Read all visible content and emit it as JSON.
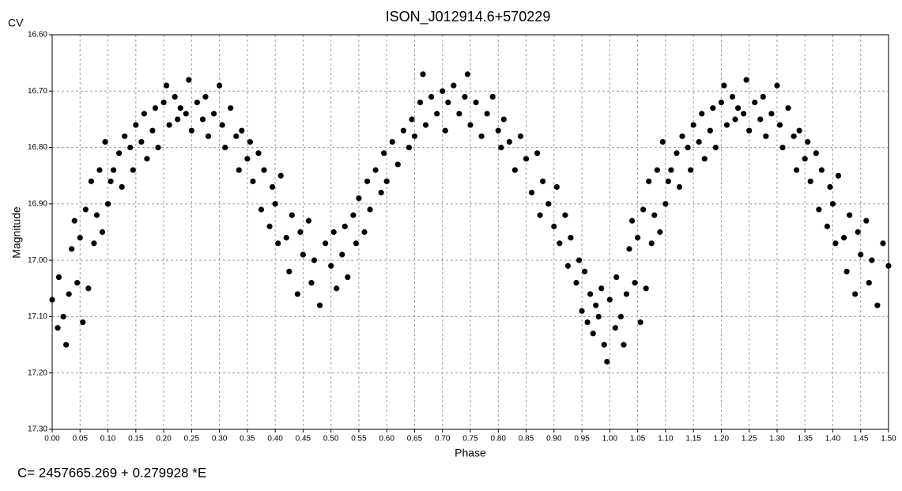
{
  "chart_data": {
    "type": "scatter",
    "title": "ISON_J012914.6+570229",
    "corner_label": "CV",
    "x_label": "Phase",
    "y_label": "Magnitude",
    "footnote": "C= 2457665.269 + 0.279928 *E",
    "color": "#000000",
    "grid": true,
    "y_inverted": true,
    "xlim": [
      0,
      1.5
    ],
    "ylim": [
      16.6,
      17.3
    ],
    "xticks": [
      {
        "value": 0,
        "label": "0.00"
      },
      {
        "value": 0.05,
        "label": "0.05"
      },
      {
        "value": 0.1,
        "label": "0.10"
      },
      {
        "value": 0.15,
        "label": "0.15"
      },
      {
        "value": 0.2,
        "label": "0.20"
      },
      {
        "value": 0.25,
        "label": "0.25"
      },
      {
        "value": 0.3,
        "label": "0.30"
      },
      {
        "value": 0.35,
        "label": "0.35"
      },
      {
        "value": 0.4,
        "label": "0.40"
      },
      {
        "value": 0.45,
        "label": "0.45"
      },
      {
        "value": 0.5,
        "label": "0.50"
      },
      {
        "value": 0.55,
        "label": "0.55"
      },
      {
        "value": 0.6,
        "label": "0.60"
      },
      {
        "value": 0.65,
        "label": "0.65"
      },
      {
        "value": 0.7,
        "label": "0.70"
      },
      {
        "value": 0.75,
        "label": "0.75"
      },
      {
        "value": 0.8,
        "label": "0.80"
      },
      {
        "value": 0.85,
        "label": "0.85"
      },
      {
        "value": 0.9,
        "label": "0.90"
      },
      {
        "value": 0.95,
        "label": "0.95"
      },
      {
        "value": 1,
        "label": "1.00"
      },
      {
        "value": 1.05,
        "label": "1.05"
      },
      {
        "value": 1.1,
        "label": "1.10"
      },
      {
        "value": 1.15,
        "label": "1.15"
      },
      {
        "value": 1.2,
        "label": "1.20"
      },
      {
        "value": 1.25,
        "label": "1.25"
      },
      {
        "value": 1.3,
        "label": "1.30"
      },
      {
        "value": 1.35,
        "label": "1.35"
      },
      {
        "value": 1.4,
        "label": "1.40"
      },
      {
        "value": 1.45,
        "label": "1.45"
      },
      {
        "value": 1.5,
        "label": "1.50"
      }
    ],
    "yticks": [
      {
        "value": 16.6,
        "label": "16.60"
      },
      {
        "value": 16.7,
        "label": "16.70"
      },
      {
        "value": 16.8,
        "label": "16.80"
      },
      {
        "value": 16.9,
        "label": "16.90"
      },
      {
        "value": 17.0,
        "label": "17.00"
      },
      {
        "value": 17.1,
        "label": "17.10"
      },
      {
        "value": 17.2,
        "label": "17.20"
      },
      {
        "value": 17.3,
        "label": "17.30"
      }
    ],
    "x": [
      0.0,
      0.01,
      0.012,
      0.02,
      0.025,
      0.03,
      0.035,
      0.04,
      0.045,
      0.05,
      0.055,
      0.06,
      0.065,
      0.07,
      0.075,
      0.08,
      0.085,
      0.09,
      0.095,
      0.1,
      0.105,
      0.11,
      0.12,
      0.125,
      0.13,
      0.14,
      0.145,
      0.15,
      0.16,
      0.165,
      0.17,
      0.18,
      0.185,
      0.19,
      0.2,
      0.205,
      0.21,
      0.22,
      0.225,
      0.23,
      0.24,
      0.245,
      0.25,
      0.26,
      0.27,
      0.275,
      0.28,
      0.29,
      0.3,
      0.305,
      0.31,
      0.32,
      0.33,
      0.335,
      0.34,
      0.35,
      0.355,
      0.36,
      0.37,
      0.375,
      0.38,
      0.39,
      0.395,
      0.4,
      0.405,
      0.41,
      0.42,
      0.425,
      0.43,
      0.44,
      0.445,
      0.45,
      0.46,
      0.465,
      0.47,
      0.48,
      0.49,
      0.5,
      0.505,
      0.51,
      0.52,
      0.525,
      0.53,
      0.54,
      0.545,
      0.55,
      0.56,
      0.565,
      0.57,
      0.58,
      0.59,
      0.595,
      0.6,
      0.61,
      0.62,
      0.63,
      0.64,
      0.645,
      0.65,
      0.66,
      0.665,
      0.67,
      0.68,
      0.69,
      0.7,
      0.705,
      0.71,
      0.72,
      0.73,
      0.74,
      0.745,
      0.75,
      0.76,
      0.77,
      0.78,
      0.79,
      0.8,
      0.805,
      0.81,
      0.82,
      0.83,
      0.84,
      0.85,
      0.86,
      0.87,
      0.875,
      0.88,
      0.89,
      0.9,
      0.905,
      0.91,
      0.92,
      0.925,
      0.93,
      0.94,
      0.945,
      0.95,
      0.955,
      0.96,
      0.965,
      0.97,
      0.975,
      0.98,
      0.985,
      0.99,
      0.995,
      1.0,
      1.01,
      1.012,
      1.02,
      1.025,
      1.03,
      1.035,
      1.04,
      1.045,
      1.05,
      1.055,
      1.06,
      1.065,
      1.07,
      1.075,
      1.08,
      1.085,
      1.09,
      1.095,
      1.1,
      1.105,
      1.11,
      1.12,
      1.125,
      1.13,
      1.14,
      1.145,
      1.15,
      1.16,
      1.165,
      1.17,
      1.18,
      1.185,
      1.19,
      1.2,
      1.205,
      1.21,
      1.22,
      1.225,
      1.23,
      1.24,
      1.245,
      1.25,
      1.26,
      1.27,
      1.275,
      1.28,
      1.29,
      1.3,
      1.305,
      1.31,
      1.32,
      1.33,
      1.335,
      1.34,
      1.35,
      1.355,
      1.36,
      1.37,
      1.375,
      1.38,
      1.39,
      1.395,
      1.4,
      1.405,
      1.41,
      1.42,
      1.425,
      1.43,
      1.44,
      1.445,
      1.45,
      1.46,
      1.465,
      1.47,
      1.48,
      1.49,
      1.5
    ],
    "values": [
      17.07,
      17.12,
      17.03,
      17.1,
      17.15,
      17.06,
      16.98,
      16.93,
      17.04,
      16.96,
      17.11,
      16.91,
      17.05,
      16.86,
      16.97,
      16.92,
      16.84,
      16.95,
      16.79,
      16.9,
      16.86,
      16.84,
      16.81,
      16.87,
      16.78,
      16.8,
      16.84,
      16.76,
      16.79,
      16.74,
      16.82,
      16.77,
      16.73,
      16.8,
      16.72,
      16.69,
      16.76,
      16.71,
      16.75,
      16.73,
      16.74,
      16.68,
      16.77,
      16.72,
      16.75,
      16.71,
      16.78,
      16.74,
      16.69,
      16.76,
      16.8,
      16.73,
      16.78,
      16.84,
      16.77,
      16.82,
      16.79,
      16.86,
      16.81,
      16.91,
      16.84,
      16.94,
      16.87,
      16.9,
      16.97,
      16.85,
      16.96,
      17.02,
      16.92,
      17.06,
      16.95,
      16.99,
      16.93,
      17.04,
      17.0,
      17.08,
      16.97,
      17.01,
      16.95,
      17.05,
      16.99,
      16.94,
      17.03,
      16.92,
      16.97,
      16.89,
      16.95,
      16.86,
      16.91,
      16.84,
      16.88,
      16.81,
      16.86,
      16.79,
      16.83,
      16.77,
      16.8,
      16.75,
      16.78,
      16.72,
      16.67,
      16.76,
      16.71,
      16.74,
      16.7,
      16.77,
      16.72,
      16.69,
      16.74,
      16.71,
      16.67,
      16.76,
      16.72,
      16.78,
      16.74,
      16.71,
      16.77,
      16.8,
      16.75,
      16.79,
      16.84,
      16.78,
      16.82,
      16.88,
      16.81,
      16.92,
      16.86,
      16.9,
      16.94,
      16.87,
      16.97,
      16.92,
      17.01,
      16.96,
      17.04,
      17.0,
      17.09,
      17.02,
      17.11,
      17.06,
      17.13,
      17.08,
      17.1,
      17.05,
      17.15,
      17.18,
      17.07,
      17.12,
      17.03,
      17.1,
      17.15,
      17.06,
      16.98,
      16.93,
      17.04,
      16.96,
      17.11,
      16.91,
      17.05,
      16.86,
      16.97,
      16.92,
      16.84,
      16.95,
      16.79,
      16.9,
      16.86,
      16.84,
      16.81,
      16.87,
      16.78,
      16.8,
      16.84,
      16.76,
      16.79,
      16.74,
      16.82,
      16.77,
      16.73,
      16.8,
      16.72,
      16.69,
      16.76,
      16.71,
      16.75,
      16.73,
      16.74,
      16.68,
      16.77,
      16.72,
      16.75,
      16.71,
      16.78,
      16.74,
      16.69,
      16.76,
      16.8,
      16.73,
      16.78,
      16.84,
      16.77,
      16.82,
      16.79,
      16.86,
      16.81,
      16.91,
      16.84,
      16.94,
      16.87,
      16.9,
      16.97,
      16.85,
      16.96,
      17.02,
      16.92,
      17.06,
      16.95,
      16.99,
      16.93,
      17.04,
      17.0,
      17.08,
      16.97,
      17.01
    ]
  }
}
